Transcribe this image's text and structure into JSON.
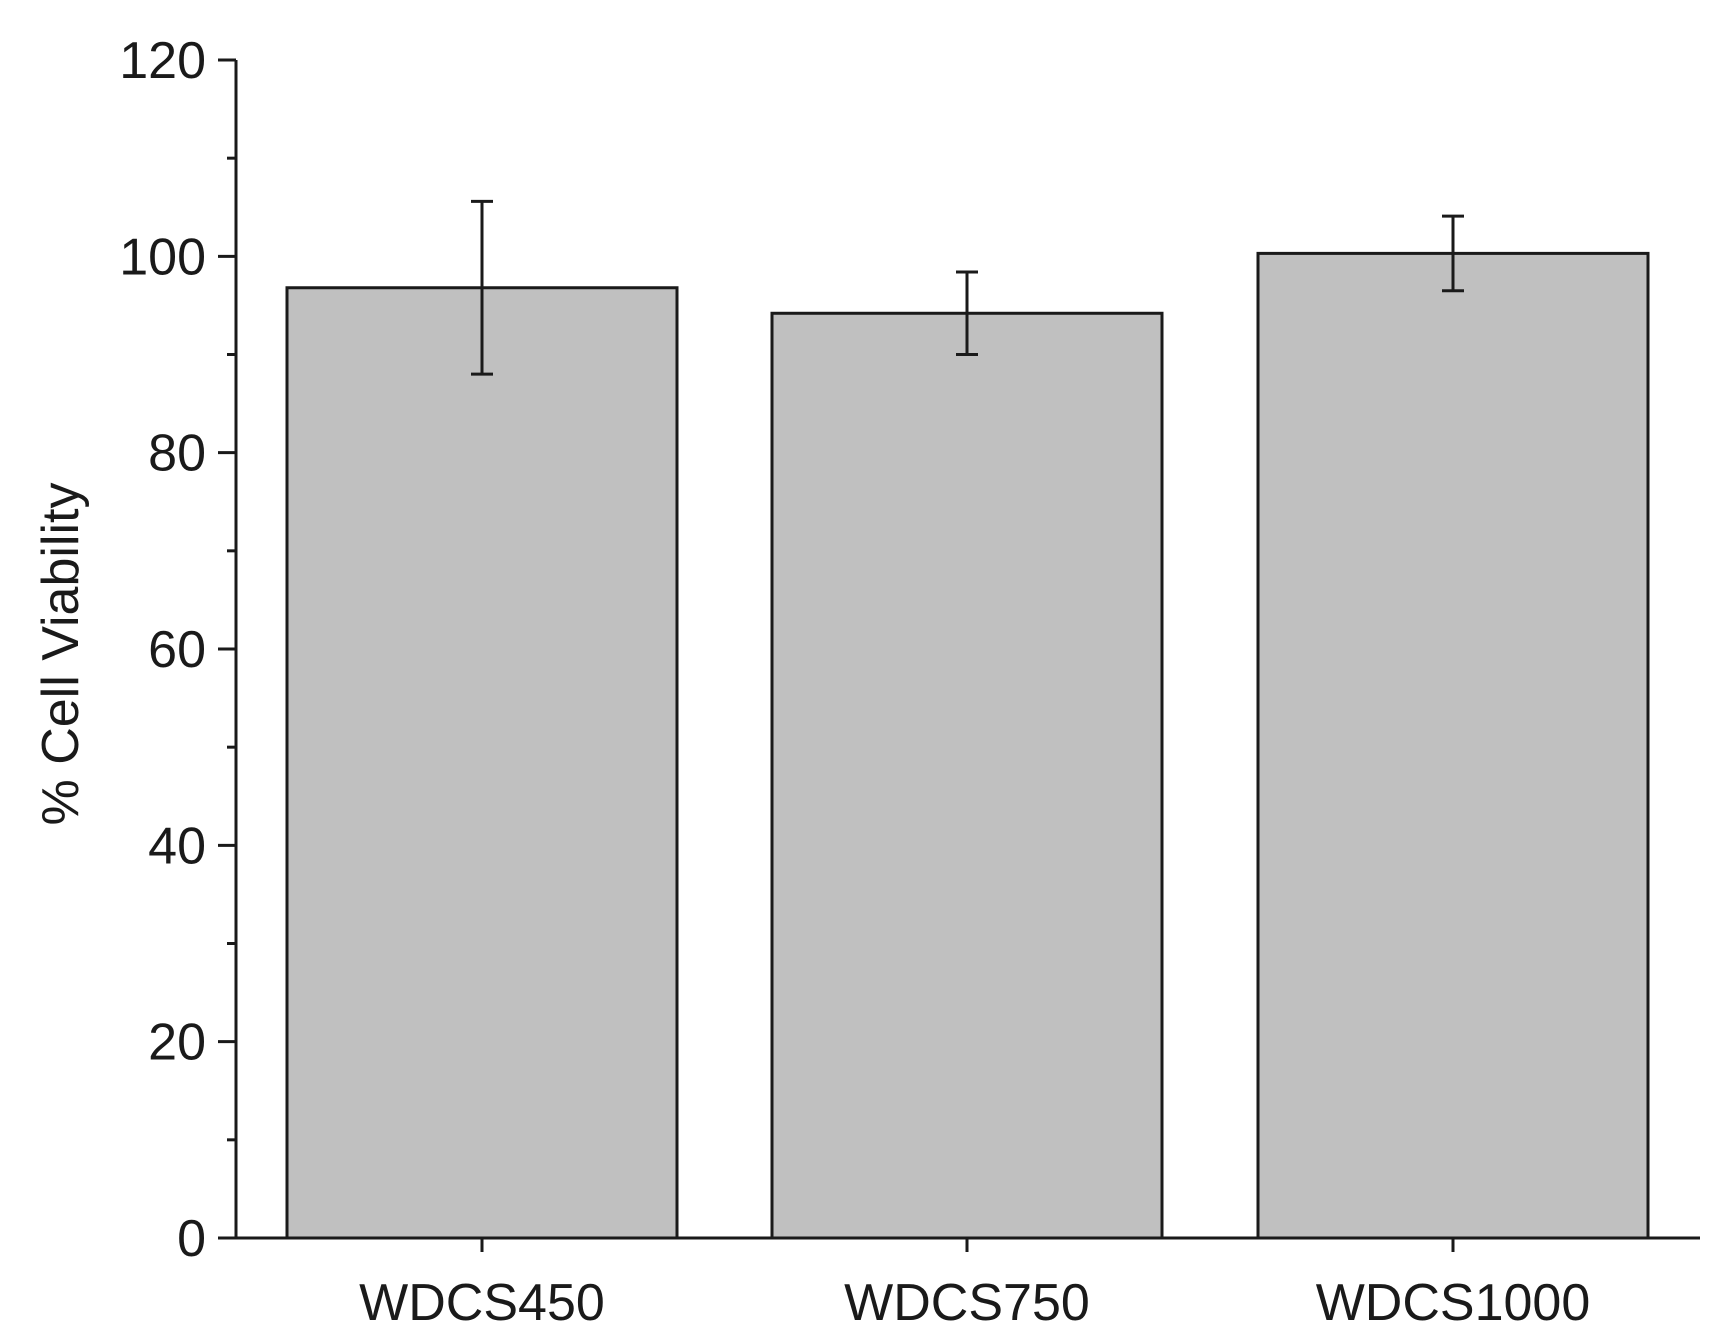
{
  "chart_data": {
    "type": "bar",
    "title": "",
    "xlabel": "",
    "ylabel": "% Cell Viability",
    "categories": [
      "WDCS450",
      "WDCS750",
      "WDCS1000"
    ],
    "series": [
      {
        "values": [
          96.8,
          94.2,
          100.3
        ],
        "error": [
          8.8,
          4.2,
          3.8
        ]
      }
    ],
    "ylim": [
      0,
      120
    ],
    "yticks": [
      0,
      20,
      40,
      60,
      80,
      100,
      120
    ],
    "y_minor_step": 10,
    "grid": false,
    "legend": "none",
    "colors": {
      "bar_fill": "#c0c0c0",
      "bar_stroke": "#1a1a1a",
      "axis": "#1a1a1a",
      "error_bar": "#1a1a1a"
    }
  }
}
